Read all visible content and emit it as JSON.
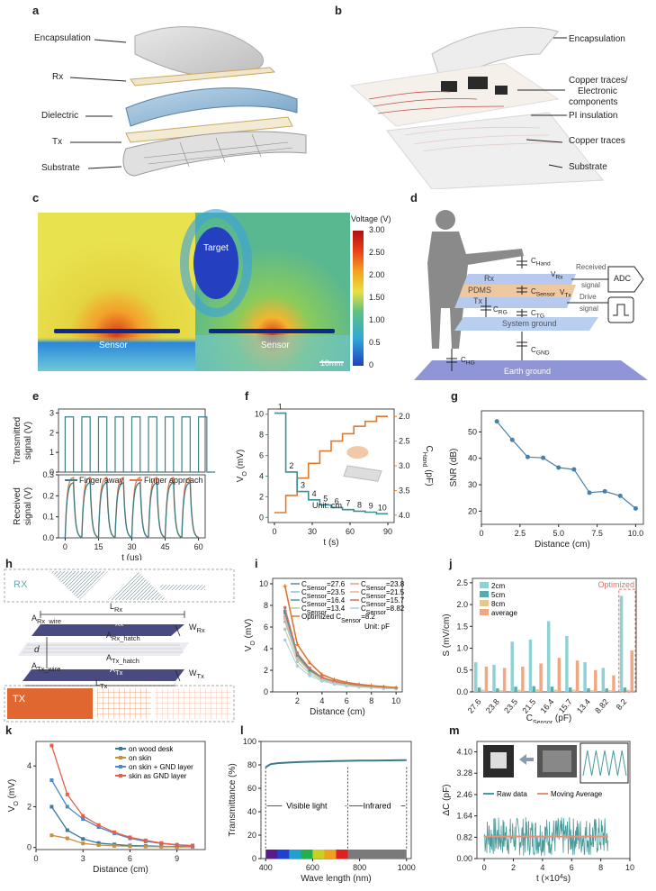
{
  "panels": {
    "a": {
      "letter": "a",
      "labels": [
        "Encapsulation",
        "Rx",
        "Dielectric",
        "Tx",
        "Substrate"
      ]
    },
    "b": {
      "letter": "b",
      "labels": [
        "Encapsulation",
        "Copper traces/",
        "Electronic",
        "components",
        "PI insulation",
        "Copper traces",
        "Substrate"
      ]
    },
    "c": {
      "letter": "c",
      "target": "Target",
      "sensor_left": "Sensor",
      "sensor_right": "Sensor",
      "scale": "10mm",
      "colorbar_title": "Voltage (V)",
      "colorbar_ticks": [
        "3.00",
        "2.50",
        "2.00",
        "1.50",
        "1.00",
        "0.5",
        "0"
      ]
    },
    "d": {
      "letter": "d",
      "c_hand": "C",
      "c_hand_sub": "Hand",
      "v_rx": "V",
      "v_rx_sub": "Rx",
      "rx": "Rx",
      "pdms": "PDMS",
      "c_sensor": "C",
      "c_sensor_sub": "Sensor",
      "tx": "Tx",
      "vt": "V",
      "vt_sub": "Tx",
      "c_rg": "C",
      "c_rg_sub": "RG",
      "c_tg": "C",
      "c_tg_sub": "TG",
      "system_ground": "System ground",
      "c_gnd": "C",
      "c_gnd_sub": "GND",
      "c_hg": "C",
      "c_hg_sub": "HG",
      "earth_ground": "Earth ground",
      "received_signal": [
        "Received",
        "signal"
      ],
      "drive_signal": [
        "Drive",
        "signal"
      ],
      "adc": "ADC"
    },
    "e": {
      "letter": "e"
    },
    "f": {
      "letter": "f"
    },
    "g": {
      "letter": "g"
    },
    "h": {
      "letter": "h",
      "rx": "RX",
      "tx": "TX",
      "l_rx": "L",
      "l_rx_sub": "Rx",
      "a_rx_wire": "A",
      "a_rx_wire_sub": "Rx_wire",
      "a_rx": "A",
      "a_rx_sub": "Rx",
      "a_rx_hatch": "A",
      "a_rx_hatch_sub": "Rx_hatch",
      "w_rx": "W",
      "w_rx_sub": "Rx",
      "d": "d",
      "a_tx_hatch": "A",
      "a_tx_hatch_sub": "Tx_hatch",
      "w_tx": "W",
      "w_tx_sub": "Tx",
      "a_tx_wire": "A",
      "a_tx_wire_sub": "Tx_wire",
      "a_tx": "A",
      "a_tx_sub": "Tx",
      "l_tx": "L",
      "l_tx_sub": "Tx"
    },
    "i": {
      "letter": "i"
    },
    "j": {
      "letter": "j"
    },
    "k": {
      "letter": "k"
    },
    "l": {
      "letter": "l"
    },
    "m": {
      "letter": "m"
    }
  },
  "chart_data": [
    {
      "panel": "e",
      "type": "line",
      "subplots": [
        {
          "ylabel": "Transmitted signal (V)",
          "yticks": [
            "0",
            "1",
            "2",
            "3"
          ],
          "ylim": [
            0,
            3.2
          ]
        },
        {
          "ylabel": "Received signal (V)",
          "yticks": [
            "0.0",
            "0.1",
            "0.2",
            "0.3"
          ],
          "ylim": [
            0,
            0.3
          ]
        }
      ],
      "xlabel": "t (us)",
      "xticks": [
        "0",
        "15",
        "30",
        "45",
        "60"
      ],
      "xlim": [
        -3,
        63
      ],
      "series": [
        {
          "name": "Finger away",
          "color": "#3e7f86"
        },
        {
          "name": "Finger approach",
          "color": "#e07a4a"
        }
      ],
      "period_us": 7.5,
      "high_v": 2.8,
      "rx_peak_away": 0.265,
      "rx_peak_approach": 0.29
    },
    {
      "panel": "f",
      "type": "line",
      "xlabel": "t (s)",
      "xlim": [
        -5,
        95
      ],
      "xticks": [
        "0",
        "30",
        "60",
        "90"
      ],
      "ylabel_left": "V",
      "ylabel_left_sub": "O",
      "ylabel_left_unit": " (mV)",
      "ylim_left": [
        -0.5,
        10.5
      ],
      "yticks_left": [
        "0",
        "2",
        "4",
        "6",
        "8",
        "10"
      ],
      "ylabel_right": "C",
      "ylabel_right_sub": "Hand",
      "ylabel_right_unit": " (pF)",
      "yticks_right": [
        "2.0",
        "2.5",
        "3.0",
        "3.5",
        "4.0"
      ],
      "unit_label": "Unit: cm",
      "step_labels": [
        "1",
        "2",
        "3",
        "4",
        "5",
        "6",
        "7",
        "8",
        "9",
        "10"
      ],
      "step_values": [
        10.1,
        4.4,
        2.5,
        1.7,
        1.2,
        0.95,
        0.75,
        0.6,
        0.5,
        0.35
      ],
      "c_values": [
        3.95,
        3.6,
        3.25,
        2.95,
        2.7,
        2.5,
        2.35,
        2.2,
        2.1,
        2.0
      ],
      "color_left": "#3e8f95",
      "color_right": "#e07a2a"
    },
    {
      "panel": "g",
      "type": "line",
      "xlabel": "Distance (cm)",
      "ylabel": "SNR (dB)",
      "xlim": [
        0,
        10.5
      ],
      "ylim": [
        15,
        58
      ],
      "xticks": [
        "0",
        "2.5",
        "5.0",
        "7.5",
        "10.0"
      ],
      "yticks": [
        "20",
        "30",
        "40",
        "50"
      ],
      "x": [
        1,
        2,
        3,
        4,
        5,
        6,
        7,
        8,
        9,
        10
      ],
      "y": [
        54,
        47,
        40.5,
        40.2,
        36.5,
        35.8,
        27,
        27.5,
        25.8,
        21
      ],
      "color": "#4a7fa8"
    },
    {
      "panel": "i",
      "type": "line",
      "xlabel": "Distance (cm)",
      "ylabel": "V",
      "ylabel_sub": "O",
      "ylabel_unit": " (mV)",
      "xlim": [
        0,
        10.5
      ],
      "ylim": [
        0,
        10.5
      ],
      "xticks": [
        "2",
        "4",
        "6",
        "8",
        "10"
      ],
      "yticks": [
        "0",
        "2",
        "4",
        "6",
        "8",
        "10"
      ],
      "unit_label": "Unit: pF",
      "x": [
        1,
        2,
        3,
        4,
        5,
        6,
        7,
        8,
        9,
        10
      ],
      "series": [
        {
          "name": "27.6",
          "color": "#5d8aa8",
          "values": [
            7.5,
            3.5,
            2.1,
            1.3,
            0.95,
            0.75,
            0.6,
            0.5,
            0.42,
            0.35
          ]
        },
        {
          "name": "23.8",
          "color": "#e8a080",
          "values": [
            7.0,
            3.3,
            2.0,
            1.25,
            0.9,
            0.72,
            0.58,
            0.48,
            0.4,
            0.33
          ]
        },
        {
          "name": "23.5",
          "color": "#8fbfd0",
          "values": [
            6.5,
            3.1,
            1.9,
            1.2,
            0.88,
            0.7,
            0.56,
            0.46,
            0.38,
            0.32
          ]
        },
        {
          "name": "21.5",
          "color": "#f0b090",
          "values": [
            6.8,
            3.2,
            1.95,
            1.2,
            0.88,
            0.7,
            0.56,
            0.46,
            0.38,
            0.32
          ]
        },
        {
          "name": "16.4",
          "color": "#4a9aa0",
          "values": [
            7.3,
            3.4,
            2.0,
            1.3,
            0.95,
            0.75,
            0.6,
            0.5,
            0.42,
            0.35
          ]
        },
        {
          "name": "15.7",
          "color": "#d9705a",
          "values": [
            7.8,
            3.6,
            2.2,
            1.35,
            1.0,
            0.78,
            0.62,
            0.52,
            0.44,
            0.36
          ]
        },
        {
          "name": "13.4",
          "color": "#b8c8a0",
          "values": [
            5.8,
            2.8,
            1.7,
            1.1,
            0.8,
            0.62,
            0.5,
            0.42,
            0.35,
            0.3
          ]
        },
        {
          "name": "8.82",
          "color": "#a8d0e0",
          "values": [
            4.8,
            2.4,
            1.5,
            1.0,
            0.72,
            0.55,
            0.45,
            0.38,
            0.32,
            0.27
          ]
        },
        {
          "name": "Optimized",
          "color": "#d97830",
          "values": [
            9.8,
            4.4,
            2.7,
            1.6,
            1.15,
            0.88,
            0.7,
            0.58,
            0.48,
            0.4
          ]
        }
      ],
      "legend": {
        "col1": [
          {
            "pre": "C",
            "sub": "Sensor",
            "post": "=27.6",
            "color": "#5d8aa8"
          },
          {
            "pre": "C",
            "sub": "Sensor",
            "post": "=23.5",
            "color": "#8fbfd0"
          },
          {
            "pre": "C",
            "sub": "Sensor",
            "post": "=16.4",
            "color": "#4a9aa0"
          },
          {
            "pre": "C",
            "sub": "Sensor",
            "post": "=13.4",
            "color": "#b8c8a0"
          }
        ],
        "col2": [
          {
            "pre": "C",
            "sub": "Sensor",
            "post": "=23.8",
            "color": "#e8a080"
          },
          {
            "pre": "C",
            "sub": "Sensor",
            "post": "=21.5",
            "color": "#f0b090"
          },
          {
            "pre": "C",
            "sub": "Sensor",
            "post": "=15.7",
            "color": "#d9705a"
          },
          {
            "pre": "C",
            "sub": "Sensor",
            "post": "=8.82",
            "color": "#a8d0e0"
          }
        ],
        "optimized": {
          "pre": "Optimized  C",
          "sub": "Sensor",
          "post": "=8.2"
        }
      }
    },
    {
      "panel": "j",
      "type": "bar",
      "ylabel": "S (mV/cm)",
      "xlabel": "C",
      "xlabel_sub": "Sensor",
      "xlabel_unit": " (pF)",
      "ylim": [
        0,
        2.6
      ],
      "yticks": [
        "0.0",
        "0.5",
        "1.0",
        "1.5",
        "2.0",
        "2.5"
      ],
      "categories": [
        "27.6",
        "23.8",
        "23.5",
        "21.5",
        "16.4",
        "15.7",
        "13.4",
        "8.82",
        "8.2"
      ],
      "optimized_label": "Optimized",
      "series": [
        {
          "name": "2cm",
          "color": "#8ed2d4",
          "values": [
            0.68,
            0.62,
            1.15,
            1.2,
            1.62,
            1.28,
            0.68,
            0.55,
            2.2
          ]
        },
        {
          "name": "5cm",
          "color": "#5aaab0",
          "values": [
            0.1,
            0.08,
            0.12,
            0.13,
            0.12,
            0.1,
            0.08,
            0.08,
            0.1
          ]
        },
        {
          "name": "8cm",
          "color": "#e5c88a",
          "values": [
            0.05,
            0.04,
            0.05,
            0.06,
            0.05,
            0.05,
            0.04,
            0.04,
            0.05
          ]
        },
        {
          "name": "average",
          "color": "#f0a883",
          "values": [
            0.58,
            0.55,
            0.58,
            0.65,
            0.78,
            0.72,
            0.5,
            0.38,
            0.95
          ]
        }
      ]
    },
    {
      "panel": "k",
      "type": "line",
      "xlabel": "Distance (cm)",
      "ylabel": "V",
      "ylabel_sub": "O",
      "ylabel_unit": " (mV)",
      "xlim": [
        0,
        10.8
      ],
      "ylim": [
        -0.1,
        5.2
      ],
      "xticks": [
        "0",
        "3",
        "6",
        "9"
      ],
      "yticks": [
        "0",
        "2",
        "4"
      ],
      "x": [
        1,
        2,
        3,
        4,
        5,
        6,
        7,
        8,
        9,
        10
      ],
      "series": [
        {
          "name": "on wood desk",
          "color": "#3a7a9a",
          "values": [
            2.0,
            0.85,
            0.42,
            0.22,
            0.15,
            0.1,
            0.08,
            0.06,
            0.05,
            0.04
          ]
        },
        {
          "name": "on skin",
          "color": "#c89040",
          "values": [
            0.6,
            0.45,
            0.2,
            0.12,
            0.08,
            0.06,
            0.05,
            0.04,
            0.03,
            0.03
          ]
        },
        {
          "name": "on skin + GND layer",
          "color": "#4a88d0",
          "values": [
            3.3,
            2.0,
            1.4,
            1.0,
            0.7,
            0.45,
            0.3,
            0.2,
            0.12,
            0.08
          ]
        },
        {
          "name": "skin as GND layer",
          "color": "#e8604a",
          "values": [
            5.0,
            2.6,
            1.55,
            1.1,
            0.75,
            0.5,
            0.35,
            0.22,
            0.14,
            0.1
          ]
        }
      ]
    },
    {
      "panel": "l",
      "type": "line",
      "xlabel": "Wave length (nm)",
      "ylabel": "Transmittance (%)",
      "xlim": [
        380,
        1020
      ],
      "ylim": [
        0,
        100
      ],
      "xticks": [
        "400",
        "600",
        "800",
        "1000"
      ],
      "yticks": [
        "0",
        "20",
        "40",
        "60",
        "80",
        "100"
      ],
      "x": [
        400,
        420,
        450,
        500,
        550,
        600,
        650,
        700,
        750,
        800,
        850,
        900,
        950,
        1000
      ],
      "y": [
        78,
        80.5,
        81.5,
        82,
        82.5,
        82.8,
        83,
        83.2,
        83.5,
        83.6,
        83.7,
        83.8,
        83.9,
        84
      ],
      "regions": [
        "Visible light",
        "Infrared"
      ],
      "boundary": 750,
      "color": "#3a7a8a"
    },
    {
      "panel": "m",
      "type": "line",
      "xlabel": "t (×10",
      "xlabel_sup": "4",
      "xlabel_unit": "s)",
      "ylabel": "ΔC (pF)",
      "xlim": [
        -0.5,
        10
      ],
      "ylim": [
        0,
        4.5
      ],
      "xticks": [
        "0",
        "2",
        "4",
        "6",
        "8",
        "10"
      ],
      "yticks": [
        "0.00",
        "0.82",
        "1.64",
        "2.46",
        "3.28",
        "4.10"
      ],
      "series": [
        {
          "name": "Raw data",
          "color": "#4a9a9a"
        },
        {
          "name": "Moving Average",
          "color": "#e8907a"
        }
      ],
      "mean": 0.85,
      "noise_low": 0.1,
      "noise_high": 1.6
    }
  ]
}
